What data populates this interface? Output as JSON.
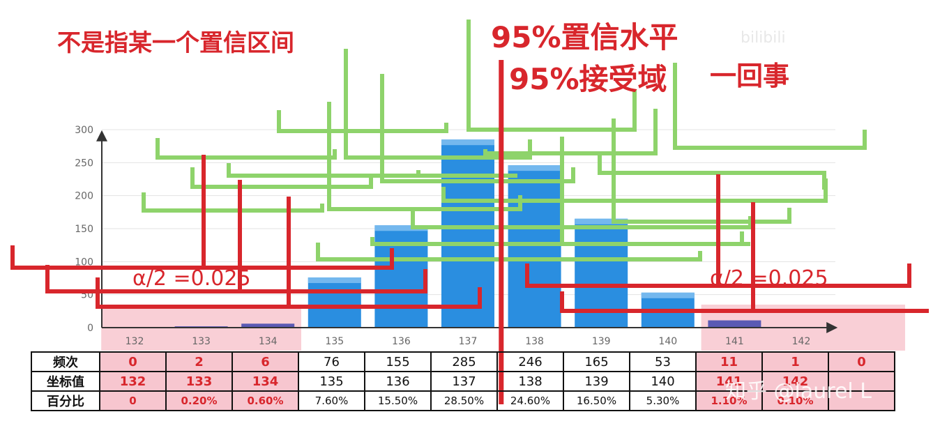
{
  "annotations": {
    "title_left": "不是指某一个置信区间",
    "title_conf": "95%置信水平",
    "title_accept": "95%接受域",
    "title_same": "一回事",
    "alpha_left": "α/2 =0.025",
    "alpha_right": "α/2 =0.025"
  },
  "watermarks": {
    "top": "bilibili",
    "bottom": "知乎 @laurel L"
  },
  "colors": {
    "accent_red": "#d8262c",
    "bar_blue": "#2a8ee0",
    "bar_blue_light": "#74b8ee",
    "bar_purple": "#5a5ab4",
    "tail_pink": "#f4a7b4",
    "overlay_green": "#8ed36b"
  },
  "table": {
    "row_labels": [
      "频次",
      "坐标值",
      "百分比"
    ],
    "frequency": [
      "0",
      "2",
      "6",
      "76",
      "155",
      "285",
      "246",
      "165",
      "53",
      "11",
      "1",
      "0"
    ],
    "coordinate": [
      "132",
      "133",
      "134",
      "135",
      "136",
      "137",
      "138",
      "139",
      "140",
      "141",
      "142",
      ""
    ],
    "percent": [
      "0",
      "0.20%",
      "0.60%",
      "7.60%",
      "15.50%",
      "28.50%",
      "24.60%",
      "16.50%",
      "5.30%",
      "1.10%",
      "0.10%",
      ""
    ],
    "tail_columns": [
      0,
      1,
      2,
      9,
      10,
      11
    ]
  },
  "chart_data": {
    "type": "bar",
    "categories": [
      "132",
      "133",
      "134",
      "135",
      "136",
      "137",
      "138",
      "139",
      "140",
      "141",
      "142"
    ],
    "values": [
      0,
      2,
      6,
      76,
      155,
      285,
      246,
      165,
      53,
      11,
      1
    ],
    "ylim": [
      0,
      300
    ],
    "yticks": [
      0,
      50,
      100,
      150,
      200,
      250,
      300
    ],
    "grid": true,
    "confidence_line_between": [
      "137",
      "138"
    ],
    "tail_regions": [
      [
        "132",
        "134"
      ],
      [
        "141",
        "142"
      ]
    ]
  }
}
